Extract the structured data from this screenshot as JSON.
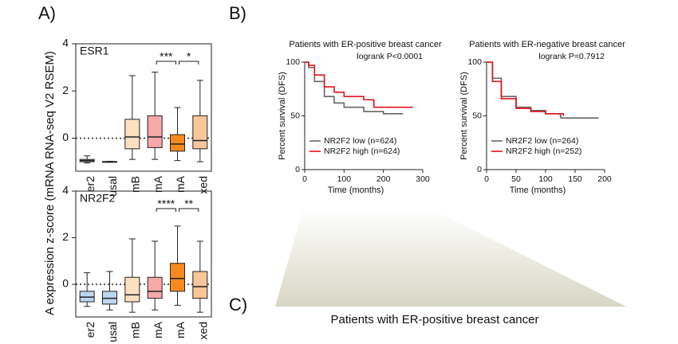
{
  "panel_labels": [
    "A)",
    "B)",
    "C)"
  ],
  "shared_ylabel": "A expression z-score (mRNA RNA-seq V2 RSEM)",
  "panel_c_title": "Patients with ER-positive breast cancer",
  "chart_data": [
    {
      "type": "box",
      "title": "ESR1",
      "categories": [
        "er2",
        "usal",
        "mB",
        "mA",
        "mA",
        "xed"
      ],
      "colors": [
        "#bcd7f0",
        "#bcd7f0",
        "#fde0c0",
        "#f7a8a8",
        "#f68a1e",
        "#f9c59a"
      ],
      "boxes": [
        {
          "min": -1.05,
          "q1": -1.0,
          "median": -0.95,
          "q3": -0.9,
          "max": -0.75
        },
        {
          "min": -1.02,
          "q1": -1.0,
          "median": -1.0,
          "q3": -0.99,
          "max": -0.98
        },
        {
          "min": -0.9,
          "q1": -0.45,
          "median": 0.05,
          "q3": 0.8,
          "max": 2.65
        },
        {
          "min": -0.9,
          "q1": -0.4,
          "median": 0.05,
          "q3": 0.95,
          "max": 2.8
        },
        {
          "min": -0.95,
          "q1": -0.55,
          "median": -0.25,
          "q3": 0.15,
          "max": 1.3
        },
        {
          "min": -1.0,
          "q1": -0.45,
          "median": -0.1,
          "q3": 0.95,
          "max": 2.45
        }
      ],
      "annotations": [
        "***",
        "*"
      ],
      "ylim": [
        -1.4,
        4
      ],
      "yticks": [
        0,
        2,
        4
      ]
    },
    {
      "type": "box",
      "title": "NR2F2",
      "categories": [
        "er2",
        "usal",
        "mB",
        "mA",
        "mA",
        "xed"
      ],
      "colors": [
        "#bcd7f0",
        "#bcd7f0",
        "#fde0c0",
        "#f7a8a8",
        "#f68a1e",
        "#f9c59a"
      ],
      "boxes": [
        {
          "min": -0.95,
          "q1": -0.75,
          "median": -0.55,
          "q3": -0.3,
          "max": 0.5
        },
        {
          "min": -1.1,
          "q1": -0.85,
          "median": -0.6,
          "q3": -0.3,
          "max": 0.55
        },
        {
          "min": -1.2,
          "q1": -0.75,
          "median": -0.45,
          "q3": 0.3,
          "max": 1.95
        },
        {
          "min": -1.1,
          "q1": -0.6,
          "median": -0.3,
          "q3": 0.3,
          "max": 1.85
        },
        {
          "min": -0.9,
          "q1": -0.3,
          "median": 0.25,
          "q3": 0.9,
          "max": 2.5
        },
        {
          "min": -1.2,
          "q1": -0.6,
          "median": -0.1,
          "q3": 0.55,
          "max": 1.85
        }
      ],
      "annotations": [
        "****",
        "**"
      ],
      "ylim": [
        -1.4,
        4
      ],
      "yticks": [
        0,
        2,
        4
      ]
    },
    {
      "type": "line",
      "title": "Patients with ER-positive breast cancer",
      "annotation": "logrank P<0.0001",
      "xlabel": "Time (months)",
      "ylabel": "Percent survival (DFS)",
      "xlim": [
        0,
        300
      ],
      "xticks": [
        0,
        100,
        200,
        300
      ],
      "ylim": [
        0,
        100
      ],
      "yticks": [
        0,
        50,
        100
      ],
      "series": [
        {
          "name": "NR2F2 low (n=624)",
          "color": "#666666",
          "x": [
            0,
            10,
            25,
            50,
            75,
            100,
            150,
            200,
            250
          ],
          "values": [
            100,
            95,
            82,
            68,
            62,
            58,
            54,
            52,
            52
          ]
        },
        {
          "name": "NR2F2 high (n=624)",
          "color": "#e3141b",
          "x": [
            0,
            10,
            25,
            50,
            75,
            100,
            150,
            175,
            176,
            275
          ],
          "values": [
            100,
            97,
            88,
            77,
            72,
            68,
            65,
            64,
            58,
            58
          ]
        }
      ]
    },
    {
      "type": "line",
      "title": "Patients with ER-negative breast cancer",
      "annotation": "logrank P=0.7912",
      "xlabel": "Time (months)",
      "ylabel": "Percent survival (DFS)",
      "xlim": [
        0,
        200
      ],
      "xticks": [
        0,
        50,
        100,
        150,
        200
      ],
      "ylim": [
        0,
        100
      ],
      "yticks": [
        0,
        50,
        100
      ],
      "series": [
        {
          "name": "NR2F2 low (n=264)",
          "color": "#666666",
          "x": [
            0,
            10,
            25,
            50,
            75,
            100,
            125,
            126,
            190
          ],
          "values": [
            100,
            85,
            68,
            58,
            55,
            52,
            50,
            48,
            48
          ]
        },
        {
          "name": "NR2F2 high (n=252)",
          "color": "#e3141b",
          "x": [
            0,
            10,
            25,
            50,
            75,
            100,
            130
          ],
          "values": [
            100,
            82,
            66,
            57,
            54,
            52,
            50
          ]
        }
      ]
    }
  ]
}
